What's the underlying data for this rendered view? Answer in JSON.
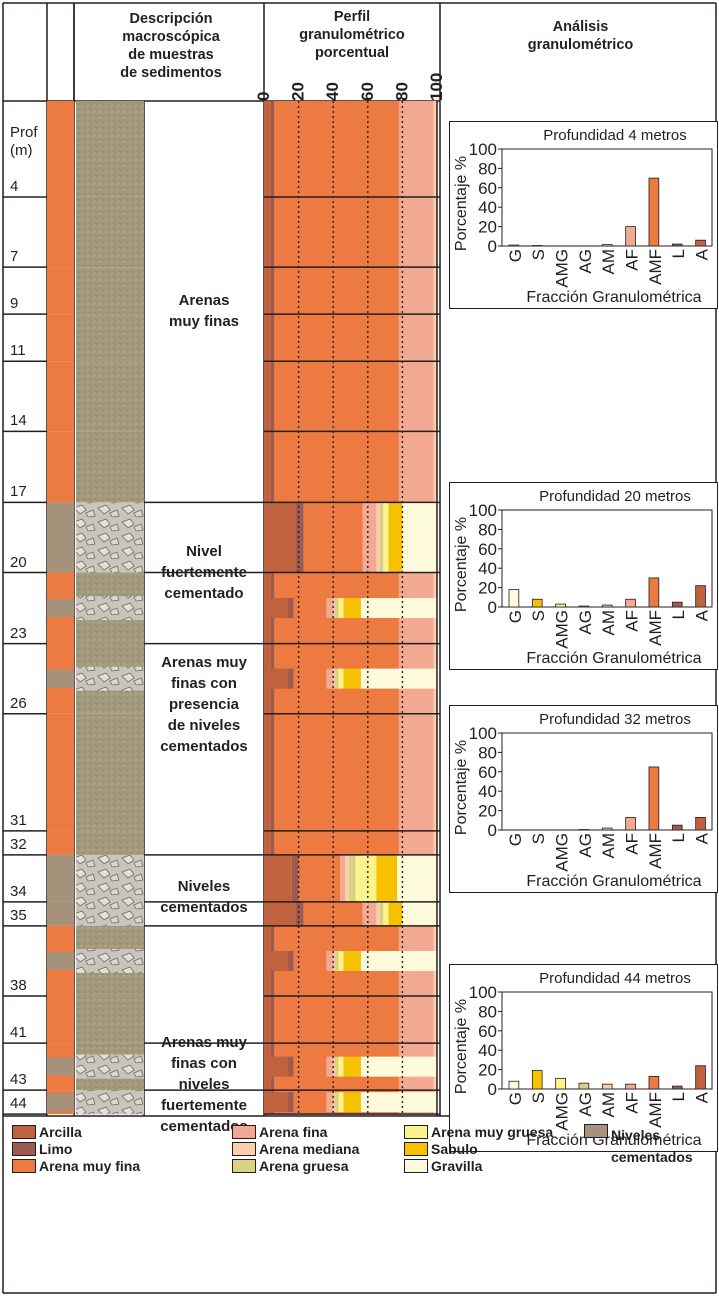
{
  "headers": {
    "desc": [
      "Descripción",
      "macroscópica",
      "de muestras",
      "de sedimentos"
    ],
    "perfil": [
      "Perfil",
      "granulométrico",
      "porcentual"
    ],
    "analisis": [
      "Análisis",
      "granulométrico"
    ]
  },
  "depth_axis": {
    "title": [
      "Prof",
      "(m)"
    ],
    "labels": [
      "4",
      "7",
      "9",
      "11",
      "14",
      "17",
      "20",
      "23",
      "26",
      "31",
      "32",
      "34",
      "35",
      "38",
      "41",
      "43",
      "44"
    ]
  },
  "descriptions": [
    [
      "Arenas",
      "muy finas"
    ],
    [
      "Nivel",
      "fuertemente",
      "cementado"
    ],
    [
      "Arenas muy",
      "finas con",
      "presencia",
      "de niveles",
      "cementados"
    ],
    [
      "Niveles",
      "cementados"
    ],
    [
      "Arenas muy",
      "finas con",
      "niveles",
      "fuertemente",
      "cementados"
    ]
  ],
  "profile_axis": {
    "ticks": [
      "0",
      "20",
      "40",
      "60",
      "80",
      "100"
    ]
  },
  "legend": [
    {
      "label": "Arcilla",
      "color": "#c1623e"
    },
    {
      "label": "Limo",
      "color": "#9e5a4e"
    },
    {
      "label": "Arena muy fina",
      "color": "#ec7a41"
    },
    {
      "label": "Arena fina",
      "color": "#f3a892"
    },
    {
      "label": "Arena mediana",
      "color": "#f9cfae"
    },
    {
      "label": "Arena gruesa",
      "color": "#d9d284"
    },
    {
      "label": "Arena muy gruesa",
      "color": "#fdf38c"
    },
    {
      "label": "Sabulo",
      "color": "#f6c100"
    },
    {
      "label": "Gravilla",
      "color": "#fefbdc"
    },
    {
      "label": "Niveles cementados",
      "color": "#a6917a"
    }
  ],
  "chart_data": [
    {
      "type": "bar",
      "title": "Profundidad 4 metros",
      "xlabel": "Fracción Granulométrica",
      "ylabel": "Porcentaje %",
      "ylim": [
        0,
        100
      ],
      "yticks": [
        "0",
        "20",
        "40",
        "60",
        "80",
        "100"
      ],
      "categories": [
        "G",
        "S",
        "AMG",
        "AG",
        "AM",
        "AF",
        "AMF",
        "L",
        "A"
      ],
      "values": [
        1,
        0.5,
        0,
        0,
        1.5,
        20,
        70,
        2,
        6
      ],
      "colors": [
        "#fefbdc",
        "#f6c100",
        "#fdf38c",
        "#d9d284",
        "#f9cfae",
        "#f3a892",
        "#ec7a41",
        "#9e5a4e",
        "#c1623e"
      ]
    },
    {
      "type": "bar",
      "title": "Profundidad 20 metros",
      "xlabel": "Fracción Granulométrica",
      "ylabel": "Porcentaje %",
      "ylim": [
        0,
        100
      ],
      "yticks": [
        "0",
        "20",
        "40",
        "60",
        "80",
        "100"
      ],
      "categories": [
        "G",
        "S",
        "AMG",
        "AG",
        "AM",
        "AF",
        "AMF",
        "L",
        "A"
      ],
      "values": [
        18,
        8,
        3,
        1,
        2,
        8,
        30,
        5,
        22
      ],
      "colors": [
        "#fefbdc",
        "#f6c100",
        "#fdf38c",
        "#d9d284",
        "#f9cfae",
        "#f3a892",
        "#ec7a41",
        "#9e5a4e",
        "#c1623e"
      ]
    },
    {
      "type": "bar",
      "title": "Profundidad 32 metros",
      "xlabel": "Fracción Granulométrica",
      "ylabel": "Porcentaje %",
      "ylim": [
        0,
        100
      ],
      "yticks": [
        "0",
        "20",
        "40",
        "60",
        "80",
        "100"
      ],
      "categories": [
        "G",
        "S",
        "AMG",
        "AG",
        "AM",
        "AF",
        "AMF",
        "L",
        "A"
      ],
      "values": [
        0,
        0,
        0,
        0.5,
        2,
        13,
        65,
        5,
        13
      ],
      "colors": [
        "#fefbdc",
        "#f6c100",
        "#fdf38c",
        "#d9d284",
        "#f9cfae",
        "#f3a892",
        "#ec7a41",
        "#9e5a4e",
        "#c1623e"
      ]
    },
    {
      "type": "bar",
      "title": "Profundidad 44 metros",
      "xlabel": "Fracción Granulométrica",
      "ylabel": "Porcentaje %",
      "ylim": [
        0,
        100
      ],
      "yticks": [
        "0",
        "20",
        "40",
        "60",
        "80",
        "100"
      ],
      "categories": [
        "G",
        "S",
        "AMG",
        "AG",
        "AM",
        "AF",
        "AMF",
        "L",
        "A"
      ],
      "values": [
        8,
        19,
        11,
        6,
        5,
        5,
        13,
        3,
        24
      ],
      "colors": [
        "#fefbdc",
        "#f6c100",
        "#fdf38c",
        "#d9d284",
        "#f9cfae",
        "#f3a892",
        "#ec7a41",
        "#9e5a4e",
        "#c1623e"
      ]
    }
  ]
}
